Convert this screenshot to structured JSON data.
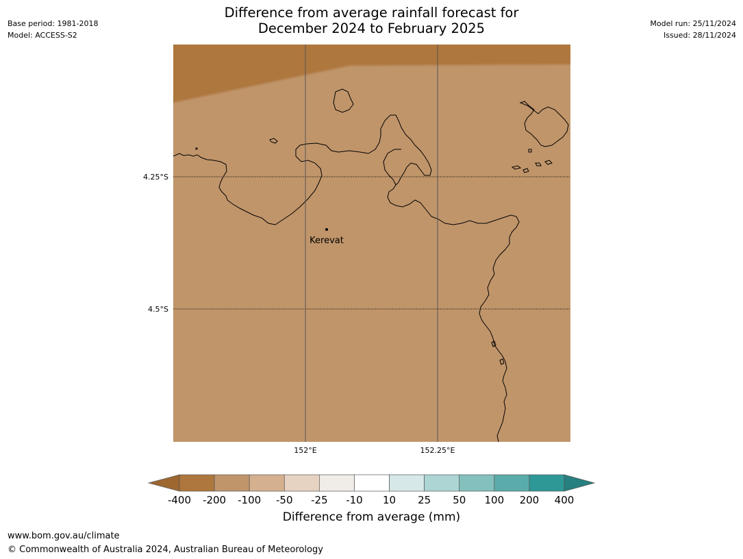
{
  "header": {
    "title_line1": "Difference from average rainfall forecast for",
    "title_line2": "December 2024 to February 2025",
    "base_period": "Base period: 1981-2018",
    "model": "Model: ACCESS-S2",
    "model_run": "Model run: 25/11/2024",
    "issued": "Issued: 28/11/2024"
  },
  "map": {
    "lat_labels": [
      "4.25°S",
      "4.5°S"
    ],
    "lon_labels": [
      "152°E",
      "152.25°E"
    ],
    "place": "Kerevat",
    "colors": {
      "fill_main": "#c0956a",
      "fill_drier": "#ae773d",
      "coast": "#000000"
    }
  },
  "colorbar": {
    "labels": [
      "-400",
      "-200",
      "-100",
      "-50",
      "-25",
      "-10",
      "10",
      "25",
      "50",
      "100",
      "200",
      "400"
    ],
    "colors": [
      "#9e6730",
      "#ae773d",
      "#c0956a",
      "#d4b08e",
      "#e6d3c2",
      "#f0ece8",
      "#ffffff",
      "#d6e8e8",
      "#acd5d4",
      "#84c0bd",
      "#5aacaa",
      "#2e9896",
      "#26807f"
    ],
    "title": "Difference from average (mm)"
  },
  "footer": {
    "url": "www.bom.gov.au/climate",
    "copyright": "© Commonwealth of Australia 2024, Australian Bureau of Meteorology"
  }
}
